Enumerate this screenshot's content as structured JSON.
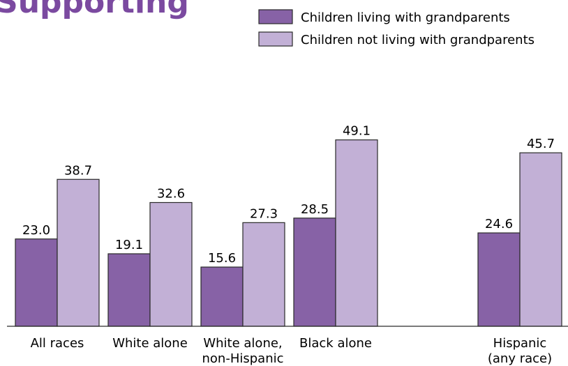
{
  "title_fragment": "Supporting",
  "colors": {
    "series1": "#8762a6",
    "series2": "#c2b0d6",
    "stroke": "#2a2a2a",
    "text": "#000000"
  },
  "chart_data": {
    "type": "bar",
    "title": "",
    "xlabel": "",
    "ylabel": "",
    "ylim": [
      0,
      55
    ],
    "grid": false,
    "legend_position": "top-right",
    "categories": [
      [
        "All races"
      ],
      [
        "White alone"
      ],
      [
        "White alone,",
        "non-Hispanic"
      ],
      [
        "Black alone"
      ],
      [
        "Hispanic",
        "(any race)"
      ]
    ],
    "series": [
      {
        "name": "Children living with grandparents",
        "values": [
          23.0,
          19.1,
          15.6,
          28.5,
          24.6
        ]
      },
      {
        "name": "Children not living with grandparents",
        "values": [
          38.7,
          32.6,
          27.3,
          49.1,
          45.7
        ]
      }
    ],
    "value_labels": [
      [
        "23.0",
        "19.1",
        "15.6",
        "28.5",
        "24.6"
      ],
      [
        "38.7",
        "32.6",
        "27.3",
        "49.1",
        "45.7"
      ]
    ]
  }
}
